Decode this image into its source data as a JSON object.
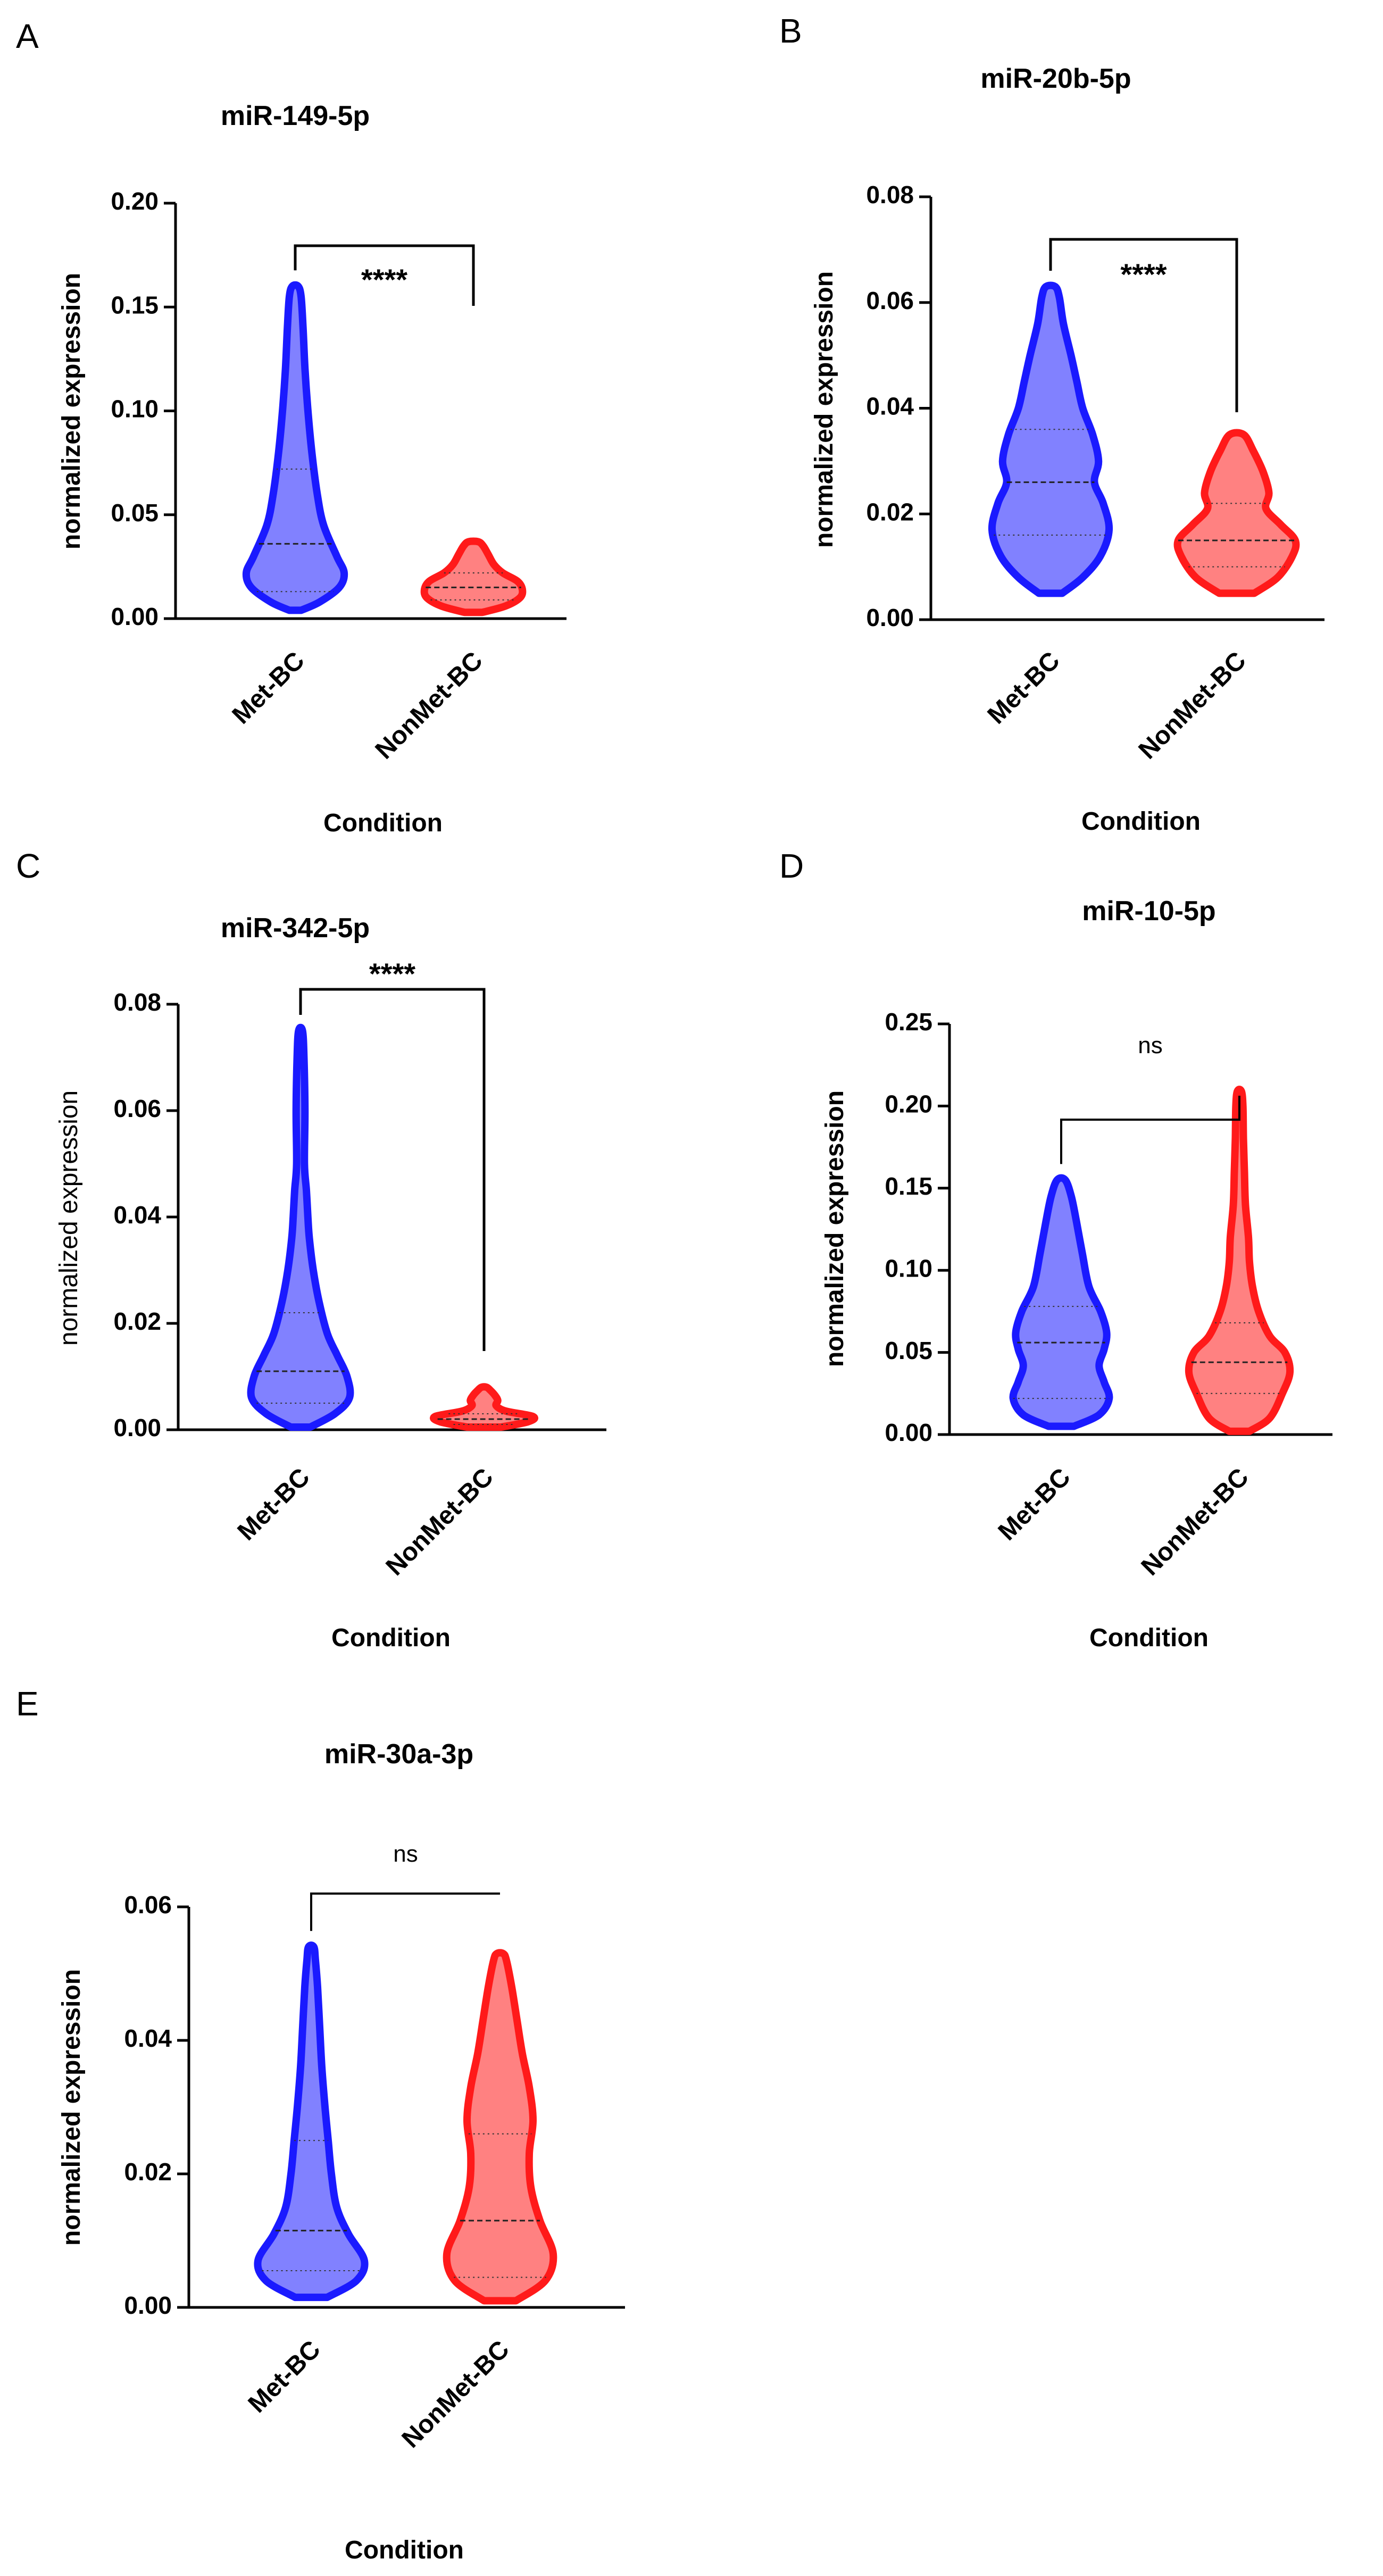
{
  "chart_data": [
    {
      "panel": "A",
      "type": "violin",
      "title": "miR-149-5p",
      "xlabel": "Condition",
      "ylabel": "normalized expression",
      "ylim": [
        0,
        0.2
      ],
      "yticks": [
        "0.00",
        "0.05",
        "0.10",
        "0.15",
        "0.20"
      ],
      "categories": [
        "Met-BC",
        "NonMet-BC"
      ],
      "colors": [
        "#1a1aff",
        "#ff1a1a"
      ],
      "significance": "****",
      "series": [
        {
          "min": 0.004,
          "max": 0.16,
          "q1": 0.013,
          "median": 0.036,
          "q3": 0.072,
          "profile": [
            [
              0.004,
              0.12
            ],
            [
              0.008,
              0.5
            ],
            [
              0.015,
              0.9
            ],
            [
              0.022,
              1.0
            ],
            [
              0.03,
              0.85
            ],
            [
              0.045,
              0.58
            ],
            [
              0.06,
              0.45
            ],
            [
              0.08,
              0.34
            ],
            [
              0.1,
              0.26
            ],
            [
              0.12,
              0.2
            ],
            [
              0.14,
              0.16
            ],
            [
              0.155,
              0.12
            ],
            [
              0.16,
              0.06
            ]
          ]
        },
        {
          "min": 0.003,
          "max": 0.037,
          "q1": 0.009,
          "median": 0.015,
          "q3": 0.022,
          "profile": [
            [
              0.003,
              0.18
            ],
            [
              0.006,
              0.65
            ],
            [
              0.01,
              0.95
            ],
            [
              0.014,
              1.0
            ],
            [
              0.018,
              0.9
            ],
            [
              0.022,
              0.6
            ],
            [
              0.026,
              0.42
            ],
            [
              0.031,
              0.3
            ],
            [
              0.035,
              0.2
            ],
            [
              0.037,
              0.1
            ]
          ]
        }
      ]
    },
    {
      "panel": "B",
      "type": "violin",
      "title": "miR-20b-5p",
      "xlabel": "Condition",
      "ylabel": "normalized expression",
      "ylim": [
        0,
        0.08
      ],
      "yticks": [
        "0.00",
        "0.02",
        "0.04",
        "0.06",
        "0.08"
      ],
      "categories": [
        "Met-BC",
        "NonMet-BC"
      ],
      "colors": [
        "#1a1aff",
        "#ff1a1a"
      ],
      "significance": "****",
      "series": [
        {
          "min": 0.005,
          "max": 0.063,
          "q1": 0.016,
          "median": 0.026,
          "q3": 0.036,
          "profile": [
            [
              0.005,
              0.2
            ],
            [
              0.008,
              0.55
            ],
            [
              0.012,
              0.85
            ],
            [
              0.017,
              1.0
            ],
            [
              0.022,
              0.9
            ],
            [
              0.026,
              0.75
            ],
            [
              0.03,
              0.82
            ],
            [
              0.035,
              0.72
            ],
            [
              0.04,
              0.55
            ],
            [
              0.045,
              0.45
            ],
            [
              0.05,
              0.35
            ],
            [
              0.056,
              0.22
            ],
            [
              0.061,
              0.15
            ],
            [
              0.063,
              0.08
            ]
          ]
        },
        {
          "min": 0.005,
          "max": 0.035,
          "q1": 0.01,
          "median": 0.015,
          "q3": 0.022,
          "profile": [
            [
              0.005,
              0.3
            ],
            [
              0.008,
              0.7
            ],
            [
              0.012,
              0.95
            ],
            [
              0.015,
              1.0
            ],
            [
              0.018,
              0.75
            ],
            [
              0.021,
              0.5
            ],
            [
              0.024,
              0.55
            ],
            [
              0.028,
              0.45
            ],
            [
              0.032,
              0.28
            ],
            [
              0.035,
              0.12
            ]
          ]
        }
      ]
    },
    {
      "panel": "C",
      "type": "violin",
      "title": "miR-342-5p",
      "xlabel": "Condition",
      "ylabel": "normalized expression",
      "ylim": [
        0,
        0.08
      ],
      "yticks": [
        "0.00",
        "0.02",
        "0.04",
        "0.06",
        "0.08"
      ],
      "categories": [
        "Met-BC",
        "NonMet-BC"
      ],
      "colors": [
        "#1a1aff",
        "#ff1a1a"
      ],
      "significance": "****",
      "series": [
        {
          "min": 0.0005,
          "max": 0.075,
          "q1": 0.005,
          "median": 0.011,
          "q3": 0.022,
          "profile": [
            [
              0.0005,
              0.2
            ],
            [
              0.003,
              0.7
            ],
            [
              0.006,
              1.0
            ],
            [
              0.01,
              0.95
            ],
            [
              0.014,
              0.75
            ],
            [
              0.018,
              0.55
            ],
            [
              0.024,
              0.38
            ],
            [
              0.03,
              0.26
            ],
            [
              0.036,
              0.18
            ],
            [
              0.04,
              0.15
            ],
            [
              0.045,
              0.12
            ],
            [
              0.05,
              0.08
            ],
            [
              0.06,
              0.09
            ],
            [
              0.07,
              0.07
            ],
            [
              0.075,
              0.04
            ]
          ]
        },
        {
          "min": 0.0005,
          "max": 0.008,
          "q1": 0.001,
          "median": 0.002,
          "q3": 0.003,
          "profile": [
            [
              0.0005,
              0.35
            ],
            [
              0.0015,
              0.9
            ],
            [
              0.0025,
              1.0
            ],
            [
              0.0035,
              0.45
            ],
            [
              0.0045,
              0.25
            ],
            [
              0.0055,
              0.28
            ],
            [
              0.0065,
              0.22
            ],
            [
              0.0075,
              0.12
            ],
            [
              0.008,
              0.05
            ]
          ]
        }
      ]
    },
    {
      "panel": "D",
      "type": "violin",
      "title": "miR-10-5p",
      "xlabel": "Condition",
      "ylabel": "normalized expression",
      "ylim": [
        0,
        0.25
      ],
      "yticks": [
        "0.00",
        "0.05",
        "0.10",
        "0.15",
        "0.20",
        "0.25"
      ],
      "categories": [
        "Met-BC",
        "NonMet-BC"
      ],
      "colors": [
        "#1a1aff",
        "#ff1a1a"
      ],
      "significance": "ns",
      "series": [
        {
          "min": 0.005,
          "max": 0.155,
          "q1": 0.022,
          "median": 0.056,
          "q3": 0.078,
          "profile": [
            [
              0.005,
              0.25
            ],
            [
              0.012,
              0.75
            ],
            [
              0.022,
              0.95
            ],
            [
              0.032,
              0.85
            ],
            [
              0.042,
              0.75
            ],
            [
              0.052,
              0.85
            ],
            [
              0.062,
              0.9
            ],
            [
              0.075,
              0.78
            ],
            [
              0.09,
              0.55
            ],
            [
              0.11,
              0.42
            ],
            [
              0.13,
              0.3
            ],
            [
              0.145,
              0.2
            ],
            [
              0.155,
              0.08
            ]
          ]
        },
        {
          "min": 0.002,
          "max": 0.209,
          "q1": 0.025,
          "median": 0.044,
          "q3": 0.068,
          "profile": [
            [
              0.002,
              0.2
            ],
            [
              0.01,
              0.6
            ],
            [
              0.025,
              0.85
            ],
            [
              0.038,
              1.0
            ],
            [
              0.05,
              0.9
            ],
            [
              0.06,
              0.6
            ],
            [
              0.075,
              0.38
            ],
            [
              0.09,
              0.26
            ],
            [
              0.105,
              0.2
            ],
            [
              0.12,
              0.18
            ],
            [
              0.14,
              0.12
            ],
            [
              0.16,
              0.1
            ],
            [
              0.18,
              0.08
            ],
            [
              0.2,
              0.07
            ],
            [
              0.209,
              0.04
            ]
          ]
        }
      ]
    },
    {
      "panel": "E",
      "type": "violin",
      "title": "miR-30a-3p",
      "xlabel": "Condition",
      "ylabel": "normalized expression",
      "ylim": [
        0,
        0.06
      ],
      "yticks": [
        "0.00",
        "0.02",
        "0.04",
        "0.06"
      ],
      "categories": [
        "Met-BC",
        "NonMet-BC"
      ],
      "colors": [
        "#1a1aff",
        "#ff1a1a"
      ],
      "significance": "ns",
      "series": [
        {
          "min": 0.0015,
          "max": 0.054,
          "q1": 0.0055,
          "median": 0.0115,
          "q3": 0.025,
          "profile": [
            [
              0.0015,
              0.3
            ],
            [
              0.004,
              0.85
            ],
            [
              0.007,
              1.0
            ],
            [
              0.011,
              0.7
            ],
            [
              0.015,
              0.48
            ],
            [
              0.02,
              0.38
            ],
            [
              0.025,
              0.32
            ],
            [
              0.03,
              0.26
            ],
            [
              0.036,
              0.2
            ],
            [
              0.042,
              0.16
            ],
            [
              0.048,
              0.12
            ],
            [
              0.052,
              0.08
            ],
            [
              0.054,
              0.05
            ]
          ]
        },
        {
          "min": 0.001,
          "max": 0.053,
          "q1": 0.0045,
          "median": 0.013,
          "q3": 0.026,
          "profile": [
            [
              0.001,
              0.3
            ],
            [
              0.004,
              0.85
            ],
            [
              0.008,
              1.0
            ],
            [
              0.013,
              0.75
            ],
            [
              0.018,
              0.58
            ],
            [
              0.023,
              0.55
            ],
            [
              0.028,
              0.62
            ],
            [
              0.033,
              0.55
            ],
            [
              0.038,
              0.42
            ],
            [
              0.043,
              0.32
            ],
            [
              0.048,
              0.22
            ],
            [
              0.052,
              0.12
            ],
            [
              0.053,
              0.06
            ]
          ]
        }
      ]
    }
  ]
}
